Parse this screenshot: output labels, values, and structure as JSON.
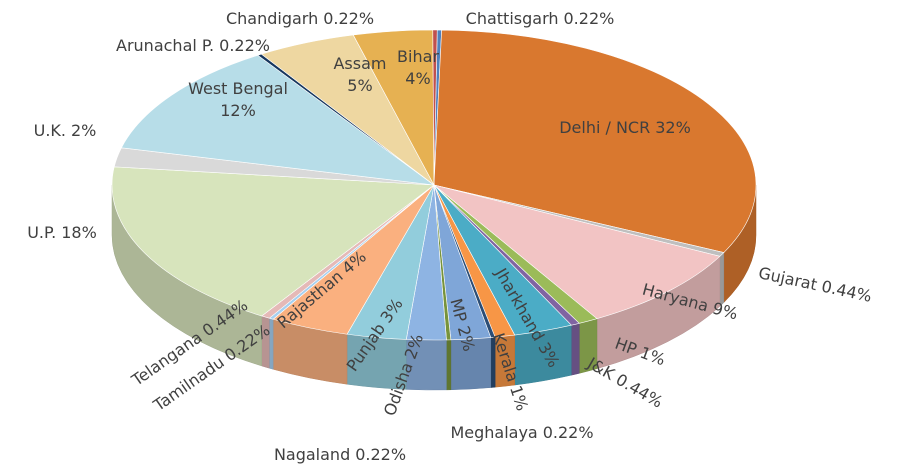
{
  "chart_data": {
    "type": "pie",
    "style": "3d",
    "categories": [
      "Chattisgarh",
      "Delhi / NCR",
      "Gujarat",
      "Haryana",
      "HP",
      "J&K",
      "Jharkhand",
      "Kerala",
      "Meghalaya",
      "MP",
      "Nagaland",
      "Odisha",
      "Punjab",
      "Rajasthan",
      "Tamilnadu",
      "Telangana",
      "U.P.",
      "U.K.",
      "West Bengal",
      "Arunachal P.",
      "Assam",
      "Bihar",
      "Chandigarh"
    ],
    "values": [
      0.22,
      32,
      0.44,
      9,
      1,
      0.44,
      3,
      1,
      0.22,
      2,
      0.22,
      2,
      3,
      4,
      0.22,
      0.44,
      18,
      2,
      12,
      0.22,
      5,
      4,
      0.22
    ],
    "value_labels": [
      "0.22%",
      "32%",
      "0.44%",
      "9%",
      "1%",
      "0.44%",
      "3%",
      "1%",
      "0.22%",
      "2%",
      "0.22%",
      "2%",
      "3%",
      "4%",
      "0.22%",
      "0.44%",
      "18%",
      "2%",
      "12%",
      "0.22%",
      "5%",
      "4%",
      "0.22%"
    ],
    "colors": [
      "#4f81bd",
      "#d9782f",
      "#bfbfbf",
      "#f2c4c4",
      "#9bbb59",
      "#8064a2",
      "#4bacc6",
      "#f79646",
      "#2c4d75",
      "#7fa6d8",
      "#77933c",
      "#8eb4e3",
      "#92cddc",
      "#fab07f",
      "#a6d0f0",
      "#e5b9b7",
      "#d7e4bc",
      "#d9d9d9",
      "#b7dde8",
      "#17375e",
      "#eed7a1",
      "#e6b152",
      "#c0504d"
    ]
  }
}
